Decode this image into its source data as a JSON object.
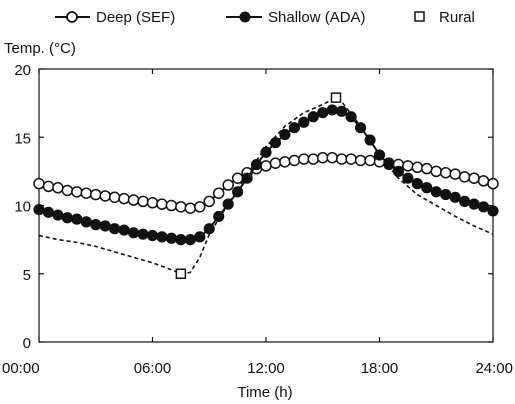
{
  "chart_data": {
    "type": "line",
    "title": "",
    "xlabel": "Time (h)",
    "ylabel": "Temp. (°C)",
    "xlim": [
      0,
      24
    ],
    "ylim": [
      0,
      20
    ],
    "x_ticks": [
      "00:00",
      "06:00",
      "12:00",
      "18:00",
      "24:00"
    ],
    "y_ticks": [
      "0",
      "5",
      "10",
      "15",
      "20"
    ],
    "legend_position": "top",
    "series": [
      {
        "name": "Deep (SEF)",
        "marker": "open-circle",
        "line": "solid",
        "color": "#111111",
        "x": [
          0,
          0.5,
          1,
          1.5,
          2,
          2.5,
          3,
          3.5,
          4,
          4.5,
          5,
          5.5,
          6,
          6.5,
          7,
          7.5,
          8,
          8.5,
          9,
          9.5,
          10,
          10.5,
          11,
          11.5,
          12,
          12.5,
          13,
          13.5,
          14,
          14.5,
          15,
          15.5,
          16,
          16.5,
          17,
          17.5,
          18,
          18.5,
          19,
          19.5,
          20,
          20.5,
          21,
          21.5,
          22,
          22.5,
          23,
          23.5,
          24
        ],
        "y": [
          11.6,
          11.4,
          11.3,
          11.1,
          11.0,
          10.9,
          10.8,
          10.7,
          10.6,
          10.5,
          10.4,
          10.3,
          10.2,
          10.1,
          10.0,
          9.9,
          9.8,
          9.9,
          10.3,
          10.9,
          11.5,
          12.0,
          12.4,
          12.7,
          12.9,
          13.1,
          13.2,
          13.3,
          13.4,
          13.4,
          13.5,
          13.5,
          13.4,
          13.4,
          13.3,
          13.3,
          13.2,
          13.1,
          13.0,
          12.9,
          12.8,
          12.7,
          12.5,
          12.4,
          12.3,
          12.1,
          12.0,
          11.8,
          11.6
        ]
      },
      {
        "name": "Shallow (ADA)",
        "marker": "filled-circle",
        "line": "solid",
        "color": "#111111",
        "x": [
          0,
          0.5,
          1,
          1.5,
          2,
          2.5,
          3,
          3.5,
          4,
          4.5,
          5,
          5.5,
          6,
          6.5,
          7,
          7.5,
          8,
          8.5,
          9,
          9.5,
          10,
          10.5,
          11,
          11.5,
          12,
          12.5,
          13,
          13.5,
          14,
          14.5,
          15,
          15.5,
          16,
          16.5,
          17,
          17.5,
          18,
          18.5,
          19,
          19.5,
          20,
          20.5,
          21,
          21.5,
          22,
          22.5,
          23,
          23.5,
          24
        ],
        "y": [
          9.7,
          9.5,
          9.3,
          9.1,
          9.0,
          8.8,
          8.6,
          8.5,
          8.3,
          8.2,
          8.0,
          7.9,
          7.8,
          7.7,
          7.6,
          7.5,
          7.5,
          7.7,
          8.3,
          9.2,
          10.1,
          11.0,
          12.0,
          13.0,
          13.9,
          14.6,
          15.2,
          15.7,
          16.1,
          16.5,
          16.8,
          17.0,
          16.9,
          16.5,
          15.7,
          14.8,
          13.7,
          13.0,
          12.5,
          12.0,
          11.6,
          11.3,
          11.0,
          10.8,
          10.6,
          10.3,
          10.1,
          9.9,
          9.6
        ]
      },
      {
        "name": "Rural",
        "marker": "open-square",
        "line": "dashed",
        "color": "#111111",
        "x": [
          0,
          1,
          2,
          3,
          4,
          5,
          6,
          7,
          7.5,
          8,
          8.5,
          9,
          10,
          11,
          12,
          13,
          14,
          15,
          15.7,
          16,
          17,
          18,
          19,
          20,
          21,
          22,
          23,
          24
        ],
        "y": [
          7.8,
          7.5,
          7.3,
          7.0,
          6.6,
          6.2,
          5.8,
          5.3,
          5.0,
          5.1,
          6.2,
          7.9,
          10.1,
          12.3,
          14.3,
          15.8,
          16.8,
          17.4,
          17.9,
          17.6,
          15.8,
          13.7,
          12.0,
          10.8,
          10.0,
          9.2,
          8.5,
          7.9
        ],
        "marked_points": [
          [
            7.5,
            5.0
          ],
          [
            15.7,
            17.9
          ]
        ]
      }
    ]
  }
}
